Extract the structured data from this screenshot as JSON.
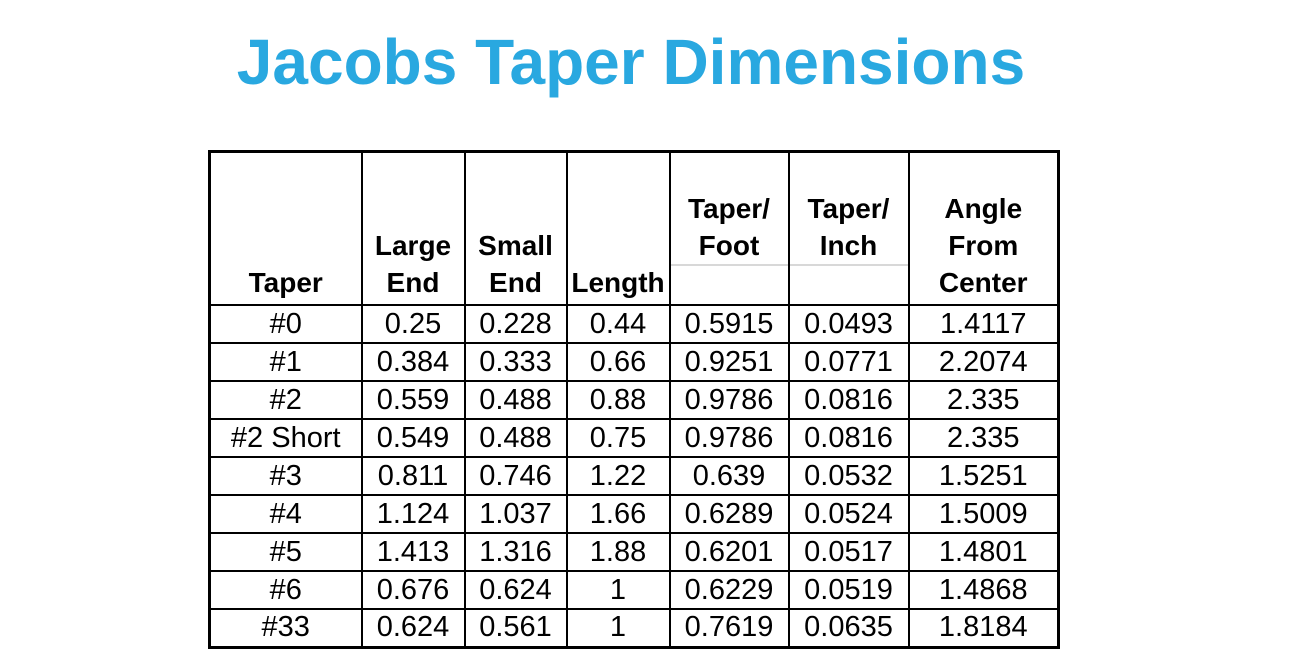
{
  "page": {
    "title": "Jacobs Taper Dimensions",
    "title_color": "#29a8e0",
    "background_color": "#ffffff",
    "table_border_color": "#000000",
    "header_faint_gridline_color": "#d8d8d8"
  },
  "table": {
    "headers": [
      "Taper",
      "Large\nEnd",
      "Small\nEnd",
      "Length",
      "Taper/\nFoot",
      "Taper/\nInch",
      "Angle\nFrom\nCenter"
    ],
    "rows": [
      [
        "#0",
        "0.25",
        "0.228",
        "0.44",
        "0.5915",
        "0.0493",
        "1.4117"
      ],
      [
        "#1",
        "0.384",
        "0.333",
        "0.66",
        "0.9251",
        "0.0771",
        "2.2074"
      ],
      [
        "#2",
        "0.559",
        "0.488",
        "0.88",
        "0.9786",
        "0.0816",
        "2.335"
      ],
      [
        "#2 Short",
        "0.549",
        "0.488",
        "0.75",
        "0.9786",
        "0.0816",
        "2.335"
      ],
      [
        "#3",
        "0.811",
        "0.746",
        "1.22",
        "0.639",
        "0.0532",
        "1.5251"
      ],
      [
        "#4",
        "1.124",
        "1.037",
        "1.66",
        "0.6289",
        "0.0524",
        "1.5009"
      ],
      [
        "#5",
        "1.413",
        "1.316",
        "1.88",
        "0.6201",
        "0.0517",
        "1.4801"
      ],
      [
        "#6",
        "0.676",
        "0.624",
        "1",
        "0.6229",
        "0.0519",
        "1.4868"
      ],
      [
        "#33",
        "0.624",
        "0.561",
        "1",
        "0.7619",
        "0.0635",
        "1.8184"
      ]
    ]
  }
}
